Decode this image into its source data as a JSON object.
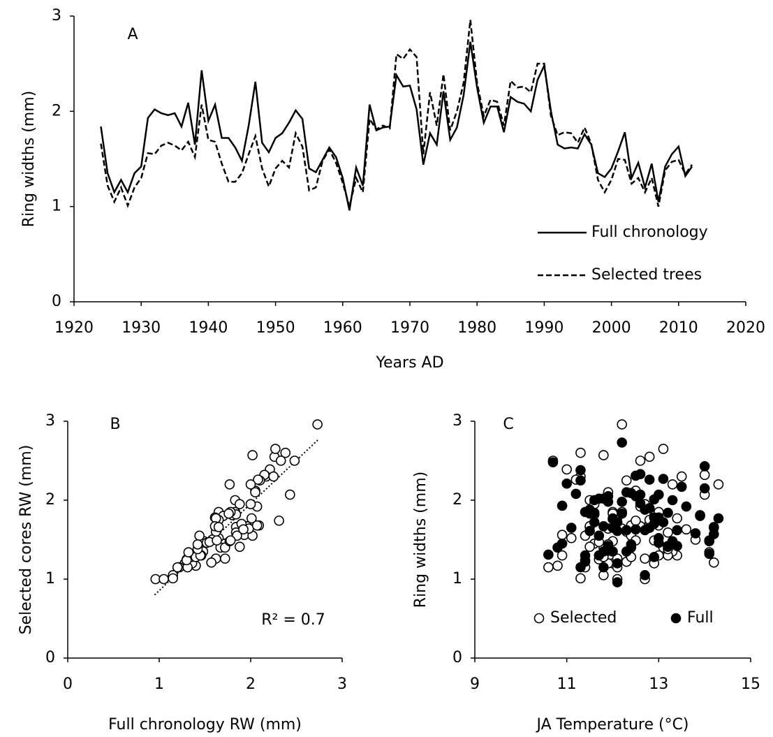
{
  "chart_data": [
    {
      "type": "line",
      "panel_label": "A",
      "x_label": "Years AD",
      "y_label": "Ring widths (mm)",
      "x": [
        1924,
        1925,
        1926,
        1927,
        1928,
        1929,
        1930,
        1931,
        1932,
        1933,
        1934,
        1935,
        1936,
        1937,
        1938,
        1939,
        1940,
        1941,
        1942,
        1943,
        1944,
        1945,
        1946,
        1947,
        1948,
        1949,
        1950,
        1951,
        1952,
        1953,
        1954,
        1955,
        1956,
        1957,
        1958,
        1959,
        1960,
        1961,
        1962,
        1963,
        1964,
        1965,
        1966,
        1967,
        1968,
        1969,
        1970,
        1971,
        1972,
        1973,
        1974,
        1975,
        1976,
        1977,
        1978,
        1979,
        1980,
        1981,
        1982,
        1983,
        1984,
        1985,
        1986,
        1987,
        1988,
        1989,
        1990,
        1991,
        1992,
        1993,
        1994,
        1995,
        1996,
        1997,
        1998,
        1999,
        2000,
        2001,
        2002,
        2003,
        2004,
        2005,
        2006,
        2007,
        2008,
        2009,
        2010,
        2011,
        2012
      ],
      "series": [
        {
          "name": "Full chronology",
          "color": "#000000",
          "line_style": "solid",
          "values": [
            1.84,
            1.35,
            1.15,
            1.28,
            1.15,
            1.35,
            1.42,
            1.93,
            2.02,
            1.98,
            1.96,
            1.98,
            1.84,
            2.09,
            1.65,
            2.43,
            1.9,
            2.07,
            1.72,
            1.72,
            1.62,
            1.48,
            1.85,
            2.31,
            1.67,
            1.57,
            1.72,
            1.77,
            1.88,
            2.01,
            1.92,
            1.4,
            1.36,
            1.49,
            1.62,
            1.52,
            1.3,
            0.96,
            1.41,
            1.22,
            2.07,
            1.8,
            1.83,
            1.84,
            2.38,
            2.26,
            2.27,
            2.02,
            1.44,
            1.77,
            1.65,
            2.21,
            1.7,
            1.83,
            2.17,
            2.73,
            2.25,
            1.88,
            2.05,
            2.05,
            1.78,
            2.15,
            2.1,
            2.08,
            2.0,
            2.33,
            2.48,
            2.0,
            1.65,
            1.61,
            1.62,
            1.61,
            1.76,
            1.65,
            1.35,
            1.31,
            1.4,
            1.58,
            1.78,
            1.3,
            1.46,
            1.2,
            1.45,
            1.05,
            1.42,
            1.55,
            1.63,
            1.32,
            1.42
          ]
        },
        {
          "name": "Selected trees",
          "color": "#000000",
          "line_style": "dashed",
          "values": [
            1.66,
            1.22,
            1.05,
            1.2,
            1.01,
            1.2,
            1.3,
            1.56,
            1.55,
            1.64,
            1.67,
            1.64,
            1.59,
            1.68,
            1.52,
            2.07,
            1.7,
            1.68,
            1.45,
            1.26,
            1.26,
            1.35,
            1.55,
            1.74,
            1.4,
            1.21,
            1.4,
            1.48,
            1.41,
            1.77,
            1.63,
            1.17,
            1.2,
            1.48,
            1.6,
            1.46,
            1.25,
            1.0,
            1.3,
            1.15,
            1.92,
            1.81,
            1.85,
            1.82,
            2.6,
            2.55,
            2.65,
            2.57,
            1.55,
            2.2,
            1.85,
            2.39,
            1.8,
            2.0,
            2.3,
            2.96,
            2.3,
            1.95,
            2.12,
            2.1,
            1.85,
            2.32,
            2.25,
            2.26,
            2.2,
            2.5,
            2.5,
            1.95,
            1.75,
            1.78,
            1.77,
            1.67,
            1.83,
            1.66,
            1.28,
            1.15,
            1.28,
            1.5,
            1.49,
            1.24,
            1.3,
            1.15,
            1.3,
            1.0,
            1.38,
            1.47,
            1.49,
            1.34,
            1.44
          ]
        }
      ],
      "xlim": [
        1920,
        2020
      ],
      "xticks": [
        1920,
        1930,
        1940,
        1950,
        1960,
        1970,
        1980,
        1990,
        2000,
        2010,
        2020
      ],
      "ylim": [
        0,
        3
      ],
      "yticks": [
        0,
        1,
        2,
        3
      ],
      "legend": "lower right"
    },
    {
      "type": "scatter",
      "panel_label": "B",
      "x_label": "Full chronology RW (mm)",
      "y_label": "Selected cores RW (mm)",
      "annotation": "R² = 0.7",
      "x": [
        1.84,
        1.35,
        1.15,
        1.28,
        1.15,
        1.35,
        1.42,
        1.93,
        2.02,
        1.98,
        1.96,
        1.98,
        1.84,
        2.09,
        1.65,
        2.43,
        1.9,
        2.07,
        1.72,
        1.72,
        1.62,
        1.48,
        1.85,
        2.31,
        1.67,
        1.57,
        1.72,
        1.77,
        1.88,
        2.01,
        1.92,
        1.4,
        1.36,
        1.49,
        1.62,
        1.52,
        1.3,
        0.96,
        1.41,
        1.22,
        2.07,
        1.8,
        1.83,
        1.84,
        2.38,
        2.26,
        2.27,
        2.02,
        1.44,
        1.77,
        1.65,
        2.21,
        1.7,
        1.83,
        2.17,
        2.73,
        2.25,
        1.88,
        2.05,
        2.05,
        1.78,
        2.15,
        2.1,
        2.08,
        2.0,
        2.33,
        2.48,
        2.0,
        1.65,
        1.61,
        1.62,
        1.61,
        1.76,
        1.65,
        1.35,
        1.31,
        1.4,
        1.58,
        1.78,
        1.3,
        1.46,
        1.2,
        1.45,
        1.05,
        1.42,
        1.55,
        1.63,
        1.32,
        1.42
      ],
      "y": [
        1.66,
        1.22,
        1.05,
        1.2,
        1.01,
        1.2,
        1.3,
        1.56,
        1.55,
        1.64,
        1.67,
        1.64,
        1.59,
        1.68,
        1.52,
        2.07,
        1.7,
        1.68,
        1.45,
        1.26,
        1.26,
        1.35,
        1.55,
        1.74,
        1.4,
        1.21,
        1.4,
        1.48,
        1.41,
        1.77,
        1.63,
        1.17,
        1.2,
        1.48,
        1.6,
        1.46,
        1.25,
        1.0,
        1.3,
        1.15,
        1.92,
        1.81,
        1.85,
        1.82,
        2.6,
        2.55,
        2.65,
        2.57,
        1.55,
        2.2,
        1.85,
        2.39,
        1.8,
        2.0,
        2.3,
        2.96,
        2.3,
        1.95,
        2.12,
        2.1,
        1.85,
        2.32,
        2.25,
        2.26,
        2.2,
        2.5,
        2.5,
        1.95,
        1.75,
        1.78,
        1.77,
        1.67,
        1.83,
        1.66,
        1.28,
        1.15,
        1.28,
        1.5,
        1.49,
        1.24,
        1.3,
        1.15,
        1.3,
        1.0,
        1.38,
        1.47,
        1.49,
        1.34,
        1.44
      ],
      "color": "#000000",
      "trendline": {
        "x": [
          0.95,
          2.75
        ],
        "y": [
          0.8,
          2.78
        ]
      },
      "xlim": [
        0,
        3
      ],
      "xticks": [
        0,
        1,
        2,
        3
      ],
      "ylim": [
        0,
        3
      ],
      "yticks": [
        0,
        1,
        2,
        3
      ]
    },
    {
      "type": "scatter",
      "panel_label": "C",
      "x_label": "JA Temperature (°C)",
      "y_label": "Ring widths (mm)",
      "x": [
        11.5,
        12.3,
        11.8,
        12.9,
        11.3,
        12.0,
        13.4,
        10.9,
        11.7,
        12.2,
        12.6,
        11.9,
        13.2,
        12.4,
        11.1,
        14.0,
        12.8,
        13.0,
        11.6,
        12.1,
        12.7,
        13.3,
        11.4,
        12.5,
        11.8,
        14.2,
        13.1,
        12.0,
        11.5,
        12.9,
        13.6,
        10.8,
        11.9,
        14.1,
        12.3,
        13.0,
        11.7,
        12.1,
        13.2,
        11.4,
        12.6,
        13.9,
        12.2,
        11.6,
        11.3,
        12.8,
        13.1,
        11.8,
        12.4,
        14.3,
        12.0,
        11.0,
        12.9,
        11.5,
        13.5,
        12.2,
        11.3,
        12.7,
        12.5,
        11.9,
        13.0,
        14.0,
        12.3,
        11.2,
        13.3,
        12.6,
        10.7,
        11.6,
        12.8,
        12.1,
        13.4,
        11.5,
        12.0,
        14.2,
        11.8,
        10.6,
        12.4,
        13.8,
        12.9,
        11.4,
        13.0,
        12.1,
        10.9,
        12.7,
        13.2,
        11.7,
        12.5,
        14.1,
        11.9
      ],
      "series": [
        {
          "name": "Selected",
          "color": "#000000",
          "filled": false,
          "values": [
            1.66,
            1.22,
            1.05,
            1.2,
            1.01,
            1.2,
            1.3,
            1.56,
            1.55,
            1.64,
            1.67,
            1.64,
            1.59,
            1.68,
            1.52,
            2.07,
            1.7,
            1.68,
            1.45,
            1.26,
            1.26,
            1.35,
            1.55,
            1.74,
            1.4,
            1.21,
            1.4,
            1.48,
            1.41,
            1.77,
            1.63,
            1.17,
            1.2,
            1.48,
            1.6,
            1.46,
            1.25,
            1.0,
            1.3,
            1.15,
            1.92,
            1.81,
            1.85,
            1.82,
            2.6,
            2.55,
            2.65,
            2.57,
            1.55,
            2.2,
            1.85,
            2.39,
            1.8,
            2.0,
            2.3,
            2.96,
            2.3,
            1.95,
            2.12,
            2.1,
            1.85,
            2.32,
            2.25,
            2.26,
            2.2,
            2.5,
            2.5,
            1.95,
            1.75,
            1.78,
            1.77,
            1.67,
            1.83,
            1.66,
            1.28,
            1.15,
            1.28,
            1.5,
            1.49,
            1.24,
            1.3,
            1.15,
            1.3,
            1.0,
            1.38,
            1.47,
            1.49,
            1.34,
            1.44
          ]
        },
        {
          "name": "Full",
          "color": "#000000",
          "filled": true,
          "values": [
            1.84,
            1.35,
            1.15,
            1.28,
            1.15,
            1.35,
            1.42,
            1.93,
            2.02,
            1.98,
            1.96,
            1.98,
            1.84,
            2.09,
            1.65,
            2.43,
            1.9,
            2.07,
            1.72,
            1.72,
            1.62,
            1.48,
            1.85,
            2.31,
            1.67,
            1.57,
            1.72,
            1.77,
            1.88,
            2.01,
            1.92,
            1.4,
            1.36,
            1.49,
            1.62,
            1.52,
            1.3,
            0.96,
            1.41,
            1.22,
            2.07,
            1.8,
            1.83,
            1.84,
            2.38,
            2.26,
            2.27,
            2.02,
            1.44,
            1.77,
            1.65,
            2.21,
            1.7,
            1.83,
            2.17,
            2.73,
            2.25,
            1.88,
            2.05,
            2.05,
            1.78,
            2.15,
            2.1,
            2.08,
            2.0,
            2.33,
            2.48,
            2.0,
            1.65,
            1.61,
            1.62,
            1.61,
            1.76,
            1.65,
            1.35,
            1.31,
            1.4,
            1.58,
            1.78,
            1.3,
            1.46,
            1.2,
            1.45,
            1.05,
            1.42,
            1.55,
            1.63,
            1.32,
            1.42
          ]
        }
      ],
      "xlim": [
        9,
        15
      ],
      "xticks": [
        9,
        11,
        13,
        15
      ],
      "ylim": [
        0,
        3
      ],
      "yticks": [
        0,
        1,
        2,
        3
      ],
      "legend": "lower center"
    }
  ]
}
